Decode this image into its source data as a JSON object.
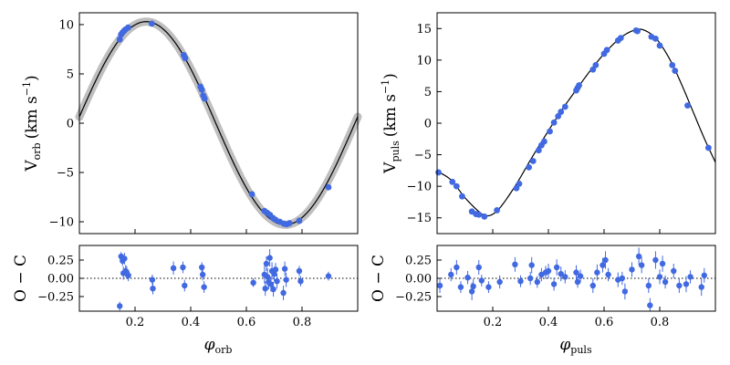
{
  "colors": {
    "points": "#4169e1",
    "model": "#000000",
    "band": "#b4b4b4"
  },
  "chart_data": [
    {
      "id": "orb",
      "type": "scatter",
      "ylabel_main": "V",
      "ylabel_sub": "orb",
      "ylabel_units": "(km s",
      "ylabel_exp": "−1",
      "ylabel_close": ")",
      "xlabel_main": "φ",
      "xlabel_sub": "orb",
      "resid_label": "O − C",
      "xlim": [
        0.0,
        1.0
      ],
      "ylim": [
        -11.2,
        11.2
      ],
      "resid_ylim": [
        -0.45,
        0.45
      ],
      "xticks": [
        0.2,
        0.4,
        0.6,
        0.8
      ],
      "xtick_labels": [
        "0.2",
        "0.4",
        "0.6",
        "0.8"
      ],
      "yticks": [
        -10,
        -5,
        0,
        5,
        10
      ],
      "ytick_labels": [
        "−10",
        "−5",
        "0",
        "5",
        "10"
      ],
      "resid_yticks": [
        -0.25,
        0.0,
        0.25
      ],
      "resid_ytick_labels": [
        "−0.25",
        "0.00",
        "0.25"
      ],
      "model": {
        "shape": "sine",
        "gamma": 0.0,
        "K": 10.3,
        "phase_of_max": 0.24
      },
      "uncertainty_band": true,
      "points": [
        {
          "x": 0.145,
          "y": 8.5
        },
        {
          "x": 0.15,
          "y": 9.0
        },
        {
          "x": 0.155,
          "y": 9.2
        },
        {
          "x": 0.16,
          "y": 9.35
        },
        {
          "x": 0.165,
          "y": 9.5
        },
        {
          "x": 0.175,
          "y": 9.7
        },
        {
          "x": 0.26,
          "y": 10.1
        },
        {
          "x": 0.375,
          "y": 6.9
        },
        {
          "x": 0.38,
          "y": 6.6
        },
        {
          "x": 0.435,
          "y": 3.7
        },
        {
          "x": 0.44,
          "y": 3.4
        },
        {
          "x": 0.445,
          "y": 2.8
        },
        {
          "x": 0.45,
          "y": 2.5
        },
        {
          "x": 0.62,
          "y": -7.2
        },
        {
          "x": 0.665,
          "y": -8.9
        },
        {
          "x": 0.675,
          "y": -9.1
        },
        {
          "x": 0.685,
          "y": -9.3
        },
        {
          "x": 0.695,
          "y": -9.6
        },
        {
          "x": 0.705,
          "y": -9.8
        },
        {
          "x": 0.72,
          "y": -10.0
        },
        {
          "x": 0.735,
          "y": -10.2
        },
        {
          "x": 0.745,
          "y": -10.25
        },
        {
          "x": 0.755,
          "y": -10.15
        },
        {
          "x": 0.79,
          "y": -9.9
        },
        {
          "x": 0.895,
          "y": -6.5
        }
      ],
      "residuals": [
        {
          "x": 0.145,
          "y": -0.38,
          "err": 0.06
        },
        {
          "x": 0.15,
          "y": 0.3,
          "err": 0.06
        },
        {
          "x": 0.155,
          "y": 0.24,
          "err": 0.07
        },
        {
          "x": 0.158,
          "y": 0.07,
          "err": 0.09
        },
        {
          "x": 0.162,
          "y": 0.27,
          "err": 0.08
        },
        {
          "x": 0.166,
          "y": 0.1,
          "err": 0.08
        },
        {
          "x": 0.17,
          "y": 0.08,
          "err": 0.09
        },
        {
          "x": 0.176,
          "y": 0.04,
          "err": 0.08
        },
        {
          "x": 0.262,
          "y": -0.02,
          "err": 0.07
        },
        {
          "x": 0.264,
          "y": -0.14,
          "err": 0.08
        },
        {
          "x": 0.338,
          "y": 0.14,
          "err": 0.09
        },
        {
          "x": 0.372,
          "y": 0.15,
          "err": 0.08
        },
        {
          "x": 0.378,
          "y": -0.1,
          "err": 0.08
        },
        {
          "x": 0.44,
          "y": 0.15,
          "err": 0.07
        },
        {
          "x": 0.443,
          "y": 0.05,
          "err": 0.08
        },
        {
          "x": 0.448,
          "y": -0.12,
          "err": 0.08
        },
        {
          "x": 0.625,
          "y": -0.06,
          "err": 0.06
        },
        {
          "x": 0.665,
          "y": 0.05,
          "err": 0.12
        },
        {
          "x": 0.668,
          "y": -0.14,
          "err": 0.1
        },
        {
          "x": 0.672,
          "y": 0.2,
          "err": 0.1
        },
        {
          "x": 0.676,
          "y": 0.02,
          "err": 0.12
        },
        {
          "x": 0.68,
          "y": -0.05,
          "err": 0.1
        },
        {
          "x": 0.684,
          "y": 0.28,
          "err": 0.12
        },
        {
          "x": 0.688,
          "y": -0.08,
          "err": 0.1
        },
        {
          "x": 0.692,
          "y": 0.1,
          "err": 0.12
        },
        {
          "x": 0.697,
          "y": -0.15,
          "err": 0.1
        },
        {
          "x": 0.7,
          "y": 0.06,
          "err": 0.1
        },
        {
          "x": 0.705,
          "y": 0.12,
          "err": 0.09
        },
        {
          "x": 0.71,
          "y": -0.04,
          "err": 0.1
        },
        {
          "x": 0.733,
          "y": -0.2,
          "err": 0.1
        },
        {
          "x": 0.738,
          "y": 0.13,
          "err": 0.1
        },
        {
          "x": 0.743,
          "y": -0.02,
          "err": 0.1
        },
        {
          "x": 0.79,
          "y": 0.1,
          "err": 0.07
        },
        {
          "x": 0.795,
          "y": -0.04,
          "err": 0.07
        },
        {
          "x": 0.895,
          "y": 0.03,
          "err": 0.06
        }
      ]
    },
    {
      "id": "puls",
      "type": "scatter",
      "ylabel_main": "V",
      "ylabel_sub": "puls",
      "ylabel_units": "(km s",
      "ylabel_exp": "−1",
      "ylabel_close": ")",
      "xlabel_main": "φ",
      "xlabel_sub": "puls",
      "resid_label": "O − C",
      "xlim": [
        0.0,
        1.0
      ],
      "ylim": [
        -17.5,
        17.5
      ],
      "resid_ylim": [
        -0.45,
        0.45
      ],
      "xticks": [
        0.2,
        0.4,
        0.6,
        0.8
      ],
      "xtick_labels": [
        "0.2",
        "0.4",
        "0.6",
        "0.8"
      ],
      "yticks": [
        -15,
        -10,
        -5,
        0,
        5,
        10,
        15
      ],
      "ytick_labels": [
        "−15",
        "−10",
        "−5",
        "0",
        "5",
        "10",
        "15"
      ],
      "resid_yticks": [
        -0.25,
        0.0,
        0.25
      ],
      "resid_ytick_labels": [
        "−0.25",
        "0.00",
        "0.25"
      ],
      "model_x": [
        0.0,
        0.05,
        0.1,
        0.15,
        0.18,
        0.22,
        0.28,
        0.34,
        0.4,
        0.45,
        0.5,
        0.55,
        0.6,
        0.65,
        0.69,
        0.73,
        0.77,
        0.8,
        0.84,
        0.88,
        0.92,
        0.96,
        1.0
      ],
      "model_y": [
        -7.6,
        -9.0,
        -11.8,
        -14.0,
        -14.7,
        -13.7,
        -10.0,
        -5.5,
        -1.2,
        2.2,
        5.3,
        8.3,
        11.0,
        13.2,
        14.4,
        14.9,
        14.1,
        12.7,
        9.8,
        6.0,
        1.8,
        -2.4,
        -6.2
      ],
      "uncertainty_band": false,
      "points": [
        {
          "x": 0.005,
          "y": -7.8
        },
        {
          "x": 0.055,
          "y": -9.3
        },
        {
          "x": 0.07,
          "y": -10.0
        },
        {
          "x": 0.09,
          "y": -11.6
        },
        {
          "x": 0.125,
          "y": -14.0
        },
        {
          "x": 0.14,
          "y": -14.4
        },
        {
          "x": 0.15,
          "y": -14.5
        },
        {
          "x": 0.17,
          "y": -14.8
        },
        {
          "x": 0.215,
          "y": -13.8
        },
        {
          "x": 0.285,
          "y": -10.3
        },
        {
          "x": 0.295,
          "y": -9.6
        },
        {
          "x": 0.33,
          "y": -7.0
        },
        {
          "x": 0.345,
          "y": -6.0
        },
        {
          "x": 0.365,
          "y": -4.3
        },
        {
          "x": 0.375,
          "y": -3.5
        },
        {
          "x": 0.385,
          "y": -2.9
        },
        {
          "x": 0.405,
          "y": -1.3
        },
        {
          "x": 0.42,
          "y": 0.1
        },
        {
          "x": 0.435,
          "y": 1.1
        },
        {
          "x": 0.445,
          "y": 1.8
        },
        {
          "x": 0.46,
          "y": 2.6
        },
        {
          "x": 0.5,
          "y": 5.2
        },
        {
          "x": 0.505,
          "y": 5.6
        },
        {
          "x": 0.51,
          "y": 6.0
        },
        {
          "x": 0.56,
          "y": 8.5
        },
        {
          "x": 0.57,
          "y": 9.2
        },
        {
          "x": 0.6,
          "y": 11.0
        },
        {
          "x": 0.61,
          "y": 11.6
        },
        {
          "x": 0.65,
          "y": 13.1
        },
        {
          "x": 0.66,
          "y": 13.5
        },
        {
          "x": 0.715,
          "y": 14.7
        },
        {
          "x": 0.72,
          "y": 14.6
        },
        {
          "x": 0.77,
          "y": 13.7
        },
        {
          "x": 0.785,
          "y": 13.4
        },
        {
          "x": 0.8,
          "y": 12.3
        },
        {
          "x": 0.845,
          "y": 9.2
        },
        {
          "x": 0.855,
          "y": 8.3
        },
        {
          "x": 0.9,
          "y": 2.8
        },
        {
          "x": 0.975,
          "y": -3.9
        }
      ],
      "residuals": [
        {
          "x": 0.01,
          "y": -0.1,
          "err": 0.1
        },
        {
          "x": 0.05,
          "y": 0.05,
          "err": 0.09
        },
        {
          "x": 0.07,
          "y": 0.15,
          "err": 0.1
        },
        {
          "x": 0.085,
          "y": -0.12,
          "err": 0.08
        },
        {
          "x": 0.11,
          "y": 0.01,
          "err": 0.09
        },
        {
          "x": 0.125,
          "y": -0.18,
          "err": 0.12
        },
        {
          "x": 0.13,
          "y": -0.11,
          "err": 0.1
        },
        {
          "x": 0.15,
          "y": 0.15,
          "err": 0.1
        },
        {
          "x": 0.16,
          "y": -0.03,
          "err": 0.08
        },
        {
          "x": 0.185,
          "y": -0.12,
          "err": 0.08
        },
        {
          "x": 0.225,
          "y": -0.05,
          "err": 0.09
        },
        {
          "x": 0.28,
          "y": 0.19,
          "err": 0.1
        },
        {
          "x": 0.3,
          "y": -0.04,
          "err": 0.08
        },
        {
          "x": 0.335,
          "y": 0.0,
          "err": 0.09
        },
        {
          "x": 0.34,
          "y": 0.18,
          "err": 0.11
        },
        {
          "x": 0.36,
          "y": -0.05,
          "err": 0.08
        },
        {
          "x": 0.375,
          "y": 0.05,
          "err": 0.09
        },
        {
          "x": 0.39,
          "y": 0.08,
          "err": 0.09
        },
        {
          "x": 0.4,
          "y": 0.1,
          "err": 0.1
        },
        {
          "x": 0.42,
          "y": -0.08,
          "err": 0.09
        },
        {
          "x": 0.43,
          "y": 0.15,
          "err": 0.11
        },
        {
          "x": 0.445,
          "y": 0.06,
          "err": 0.1
        },
        {
          "x": 0.46,
          "y": 0.02,
          "err": 0.09
        },
        {
          "x": 0.5,
          "y": 0.08,
          "err": 0.1
        },
        {
          "x": 0.505,
          "y": -0.05,
          "err": 0.08
        },
        {
          "x": 0.515,
          "y": 0.03,
          "err": 0.09
        },
        {
          "x": 0.56,
          "y": -0.1,
          "err": 0.1
        },
        {
          "x": 0.575,
          "y": 0.08,
          "err": 0.11
        },
        {
          "x": 0.595,
          "y": 0.18,
          "err": 0.1
        },
        {
          "x": 0.605,
          "y": 0.25,
          "err": 0.12
        },
        {
          "x": 0.615,
          "y": 0.05,
          "err": 0.09
        },
        {
          "x": 0.65,
          "y": -0.02,
          "err": 0.1
        },
        {
          "x": 0.665,
          "y": 0.0,
          "err": 0.09
        },
        {
          "x": 0.675,
          "y": -0.18,
          "err": 0.11
        },
        {
          "x": 0.7,
          "y": 0.12,
          "err": 0.1
        },
        {
          "x": 0.725,
          "y": 0.3,
          "err": 0.12
        },
        {
          "x": 0.735,
          "y": 0.18,
          "err": 0.11
        },
        {
          "x": 0.76,
          "y": -0.1,
          "err": 0.1
        },
        {
          "x": 0.765,
          "y": -0.37,
          "err": 0.1
        },
        {
          "x": 0.785,
          "y": 0.25,
          "err": 0.12
        },
        {
          "x": 0.8,
          "y": 0.02,
          "err": 0.1
        },
        {
          "x": 0.81,
          "y": 0.2,
          "err": 0.11
        },
        {
          "x": 0.82,
          "y": -0.05,
          "err": 0.09
        },
        {
          "x": 0.85,
          "y": 0.1,
          "err": 0.1
        },
        {
          "x": 0.87,
          "y": -0.1,
          "err": 0.1
        },
        {
          "x": 0.895,
          "y": -0.08,
          "err": 0.11
        },
        {
          "x": 0.91,
          "y": 0.02,
          "err": 0.09
        },
        {
          "x": 0.95,
          "y": -0.12,
          "err": 0.12
        },
        {
          "x": 0.96,
          "y": 0.04,
          "err": 0.1
        }
      ]
    }
  ]
}
